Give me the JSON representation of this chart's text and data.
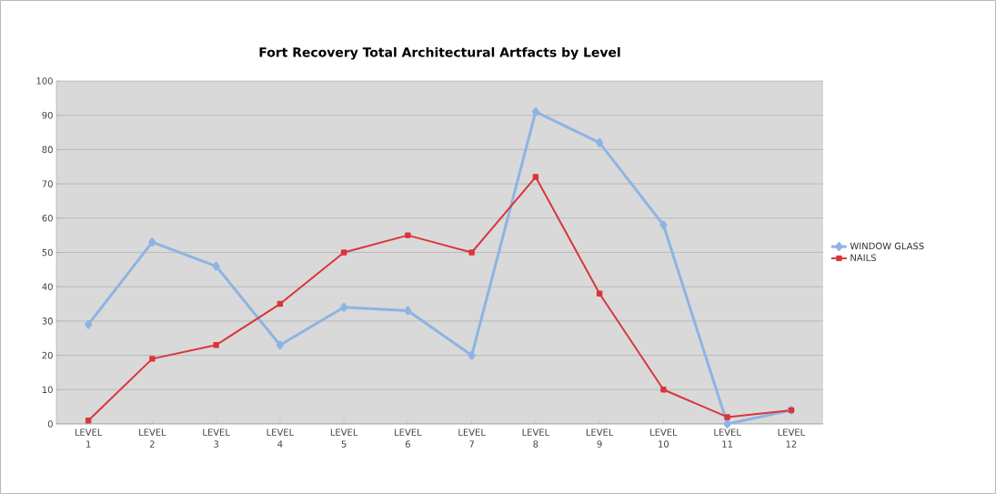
{
  "chart_data": {
    "type": "line",
    "title": "Fort Recovery Total Architectural Artfacts by Level",
    "categories": [
      "LEVEL 1",
      "LEVEL 2",
      "LEVEL 3",
      "LEVEL 4",
      "LEVEL 5",
      "LEVEL 6",
      "LEVEL 7",
      "LEVEL 8",
      "LEVEL 9",
      "LEVEL 10",
      "LEVEL 11",
      "LEVEL 12"
    ],
    "series": [
      {
        "name": "WINDOW GLASS",
        "color": "#8db4e2",
        "marker": "diamond",
        "values": [
          29,
          53,
          46,
          23,
          34,
          33,
          20,
          91,
          82,
          58,
          0,
          4
        ]
      },
      {
        "name": "NAILS",
        "color": "#d9353a",
        "marker": "square",
        "values": [
          1,
          19,
          23,
          35,
          50,
          55,
          50,
          72,
          38,
          10,
          2,
          4
        ]
      }
    ],
    "ylim": [
      0,
      100
    ],
    "yticks": [
      0,
      10,
      20,
      30,
      40,
      50,
      60,
      70,
      80,
      90,
      100
    ],
    "grid": "y",
    "legend": "right"
  }
}
